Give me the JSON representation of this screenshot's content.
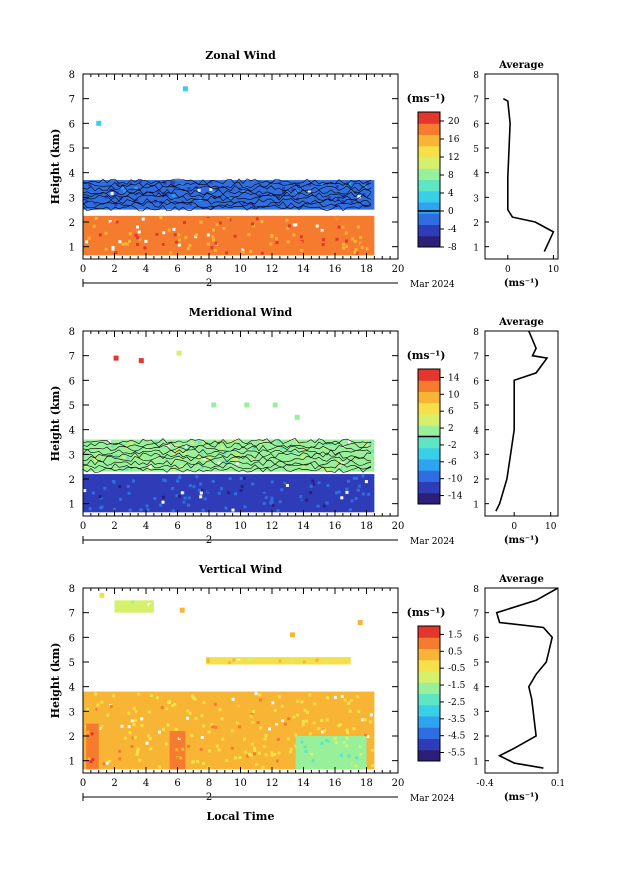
{
  "figure": {
    "bottom_label": "Local Time",
    "date_label": "Mar 2024",
    "day_marker": "2"
  },
  "chart_data": [
    {
      "type": "heatmap",
      "title": "Zonal Wind",
      "xlabel": "",
      "ylabel": "Height (km)",
      "xlim": [
        0,
        20
      ],
      "ylim": [
        0.5,
        8
      ],
      "xticks": [
        0,
        2,
        4,
        6,
        8,
        10,
        12,
        14,
        16,
        18,
        20
      ],
      "yticks": [
        1,
        2,
        3,
        4,
        5,
        6,
        7,
        8
      ],
      "colorbar": {
        "unit": "(ms⁻¹)",
        "range": [
          -8,
          22
        ],
        "ticks": [
          -8,
          -4,
          0,
          4,
          8,
          12,
          16,
          20
        ],
        "zero_line": 0
      },
      "bands": [
        {
          "y0": 2.5,
          "y1": 3.7,
          "x0": 0,
          "x1": 18.5,
          "value": -2.5,
          "contoured": true
        },
        {
          "y0": 0.65,
          "y1": 2.25,
          "x0": 0,
          "x1": 18.5,
          "value": 18
        }
      ],
      "isolated_points": [
        {
          "x": 6.5,
          "y": 7.4,
          "value": 4
        },
        {
          "x": 1.0,
          "y": 6.0,
          "value": 4
        }
      ],
      "average_profile": {
        "title": "Average",
        "xlabel": "(ms⁻¹)",
        "xlim": [
          -5,
          11
        ],
        "xticks": [
          0,
          10
        ],
        "points": [
          [
            -1,
            7.0
          ],
          [
            0,
            6.9
          ],
          [
            0.5,
            6.0
          ],
          [
            0,
            3.8
          ],
          [
            0,
            2.5
          ],
          [
            1,
            2.2
          ],
          [
            6,
            2.0
          ],
          [
            10,
            1.6
          ],
          [
            9,
            1.2
          ],
          [
            8,
            0.8
          ]
        ]
      }
    },
    {
      "type": "heatmap",
      "title": "Meridional Wind",
      "xlabel": "",
      "ylabel": "Height (km)",
      "xlim": [
        0,
        20
      ],
      "ylim": [
        0.5,
        8
      ],
      "xticks": [
        0,
        2,
        4,
        6,
        8,
        10,
        12,
        14,
        16,
        18,
        20
      ],
      "yticks": [
        1,
        2,
        3,
        4,
        5,
        6,
        7,
        8
      ],
      "colorbar": {
        "unit": "(ms⁻¹)",
        "range": [
          -16,
          16
        ],
        "ticks": [
          -14,
          -10,
          -6,
          -2,
          2,
          6,
          10,
          14
        ],
        "zero_line": 0
      },
      "bands": [
        {
          "y0": 2.3,
          "y1": 3.6,
          "x0": 0,
          "x1": 18.5,
          "value": 2,
          "contoured": true
        },
        {
          "y0": 0.65,
          "y1": 2.2,
          "x0": 0,
          "x1": 18.5,
          "value": -11
        }
      ],
      "isolated_points": [
        {
          "x": 2.1,
          "y": 6.9,
          "value": 16
        },
        {
          "x": 3.7,
          "y": 6.8,
          "value": 14
        },
        {
          "x": 6.1,
          "y": 7.1,
          "value": 4
        },
        {
          "x": 8.3,
          "y": 5.0,
          "value": 2
        },
        {
          "x": 10.4,
          "y": 5.0,
          "value": 2
        },
        {
          "x": 12.2,
          "y": 5.0,
          "value": 2
        },
        {
          "x": 13.6,
          "y": 4.5,
          "value": 2
        }
      ],
      "average_profile": {
        "title": "Average",
        "xlabel": "(ms⁻¹)",
        "xlim": [
          -8,
          12
        ],
        "xticks": [
          0,
          10
        ],
        "points": [
          [
            4,
            8.0
          ],
          [
            6,
            7.3
          ],
          [
            5,
            7.0
          ],
          [
            9,
            6.9
          ],
          [
            6,
            6.3
          ],
          [
            0,
            6.0
          ],
          [
            0,
            4.0
          ],
          [
            -1,
            3.0
          ],
          [
            -2,
            2.0
          ],
          [
            -4,
            1.0
          ],
          [
            -5,
            0.7
          ]
        ]
      }
    },
    {
      "type": "heatmap",
      "title": "Vertical Wind",
      "xlabel": "Local Time",
      "ylabel": "Height (km)",
      "xlim": [
        0,
        20
      ],
      "ylim": [
        0.5,
        8
      ],
      "xticks": [
        0,
        2,
        4,
        6,
        8,
        10,
        12,
        14,
        16,
        18,
        20
      ],
      "yticks": [
        1,
        2,
        3,
        4,
        5,
        6,
        7,
        8
      ],
      "colorbar": {
        "unit": "(ms⁻¹)",
        "range": [
          -6,
          2
        ],
        "ticks": [
          -5.5,
          -4.5,
          -3.5,
          -2.5,
          -1.5,
          -0.5,
          0.5,
          1.5
        ],
        "zero_line": null
      },
      "bands": [
        {
          "y0": 0.65,
          "y1": 3.8,
          "x0": 0,
          "x1": 18.5,
          "value": 0.1
        },
        {
          "y0": 0.65,
          "y1": 2.0,
          "x0": 13.5,
          "x1": 18.0,
          "value": -1.6
        },
        {
          "y0": 0.65,
          "y1": 2.5,
          "x0": 0.2,
          "x1": 1.0,
          "value": 1.0
        },
        {
          "y0": 0.65,
          "y1": 2.2,
          "x0": 5.5,
          "x1": 6.5,
          "value": 0.8
        },
        {
          "y0": 4.9,
          "y1": 5.2,
          "x0": 7.8,
          "x1": 17.0,
          "value": -0.2
        },
        {
          "y0": 7.0,
          "y1": 7.5,
          "x0": 2.0,
          "x1": 4.5,
          "value": -1.0
        }
      ],
      "isolated_points": [
        {
          "x": 1.2,
          "y": 7.7,
          "value": -0.5
        },
        {
          "x": 6.3,
          "y": 7.1,
          "value": 0.2
        },
        {
          "x": 17.6,
          "y": 6.6,
          "value": 0.1
        },
        {
          "x": 13.3,
          "y": 6.1,
          "value": 0.1
        }
      ],
      "average_profile": {
        "title": "Average",
        "xlabel": "(ms⁻¹)",
        "xlim": [
          -0.4,
          0.1
        ],
        "xticks": [
          -0.4,
          0.1
        ],
        "points": [
          [
            0.1,
            8.0
          ],
          [
            -0.05,
            7.5
          ],
          [
            -0.32,
            7.0
          ],
          [
            -0.3,
            6.6
          ],
          [
            0.0,
            6.4
          ],
          [
            0.06,
            6.0
          ],
          [
            0.02,
            5.0
          ],
          [
            -0.05,
            4.5
          ],
          [
            -0.1,
            4.0
          ],
          [
            -0.08,
            3.5
          ],
          [
            -0.05,
            2.0
          ],
          [
            -0.2,
            1.5
          ],
          [
            -0.3,
            1.2
          ],
          [
            -0.2,
            0.9
          ],
          [
            0.0,
            0.7
          ]
        ]
      }
    }
  ]
}
